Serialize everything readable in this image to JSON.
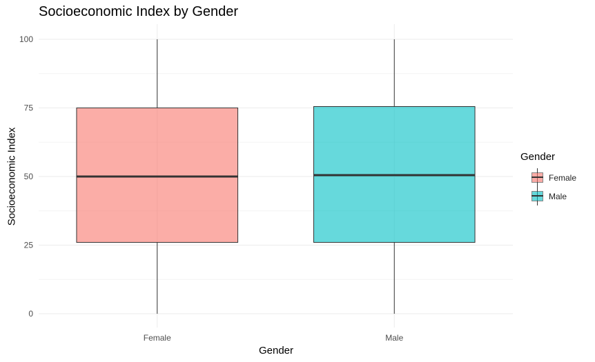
{
  "chart_data": {
    "type": "boxplot",
    "title": "Socioeconomic Index by Gender",
    "xlabel": "Gender",
    "ylabel": "Socioeconomic Index",
    "ylim": [
      0,
      100
    ],
    "y_ticks": [
      0,
      25,
      50,
      75,
      100
    ],
    "categories": [
      "Female",
      "Male"
    ],
    "boxes": [
      {
        "category": "Female",
        "min": 0,
        "q1": 26,
        "median": 50,
        "q3": 75,
        "max": 100,
        "color": "#F8766D"
      },
      {
        "category": "Male",
        "min": 0,
        "q1": 26,
        "median": 50.5,
        "q3": 75.5,
        "max": 100,
        "color": "#00BFC4"
      }
    ],
    "legend": {
      "title": "Gender",
      "position": "right",
      "entries": [
        {
          "label": "Female",
          "color": "#F8766D"
        },
        {
          "label": "Male",
          "color": "#00BFC4"
        }
      ]
    },
    "grid": true
  }
}
